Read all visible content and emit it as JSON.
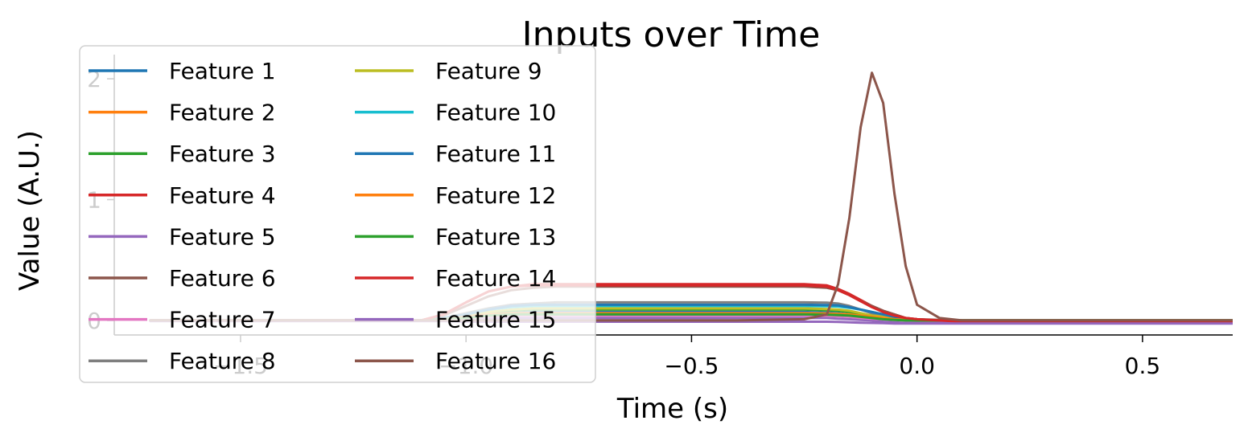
{
  "chart_data": {
    "type": "line",
    "title": "Inputs over Time",
    "xlabel": "Time (s)",
    "ylabel": "Value (A.U.)",
    "xlim": [
      -1.78,
      0.7
    ],
    "ylim": [
      -0.12,
      2.2
    ],
    "xticks": [
      -1.5,
      -1.0,
      -0.5,
      0.0,
      0.5
    ],
    "xtick_labels": [
      "−1.5",
      "−1.0",
      "−0.5",
      "0.0",
      "0.5"
    ],
    "yticks": [
      0,
      1,
      2
    ],
    "ytick_labels": [
      "0",
      "1",
      "2"
    ],
    "legend_position": "upper-left",
    "legend_columns": 2,
    "grid": false,
    "x": [
      -1.7,
      -1.6,
      -1.5,
      -1.4,
      -1.3,
      -1.2,
      -1.1,
      -1.05,
      -1.0,
      -0.95,
      -0.9,
      -0.85,
      -0.8,
      -0.6,
      -0.4,
      -0.25,
      -0.2,
      -0.175,
      -0.15,
      -0.125,
      -0.1,
      -0.075,
      -0.05,
      -0.025,
      0.0,
      0.05,
      0.1,
      0.2,
      0.4,
      0.6,
      0.7
    ],
    "series": [
      {
        "name": "Feature 1",
        "color": "#1f77b4",
        "values": [
          0,
          0,
          0,
          0,
          0,
          0,
          0,
          0.01,
          0.03,
          0.05,
          0.06,
          0.07,
          0.07,
          0.07,
          0.07,
          0.07,
          0.065,
          0.06,
          0.05,
          0.04,
          0.03,
          0.02,
          0.015,
          0.01,
          0.005,
          0,
          0,
          0,
          0,
          0,
          0
        ]
      },
      {
        "name": "Feature 2",
        "color": "#ff7f0e",
        "values": [
          0,
          0,
          0,
          0,
          0,
          0,
          0,
          0.01,
          0.02,
          0.04,
          0.05,
          0.05,
          0.05,
          0.05,
          0.05,
          0.05,
          0.048,
          0.045,
          0.04,
          0.03,
          0.02,
          0.015,
          0.01,
          0.005,
          0,
          0,
          0,
          0,
          0,
          0,
          0
        ]
      },
      {
        "name": "Feature 3",
        "color": "#2ca02c",
        "values": [
          0,
          0,
          0,
          0,
          0,
          0,
          0,
          0.01,
          0.03,
          0.06,
          0.08,
          0.09,
          0.09,
          0.09,
          0.09,
          0.09,
          0.085,
          0.08,
          0.07,
          0.055,
          0.04,
          0.03,
          0.02,
          0.01,
          0.005,
          0,
          0,
          0,
          0,
          0,
          0
        ]
      },
      {
        "name": "Feature 4",
        "color": "#d62728",
        "values": [
          0,
          0,
          0,
          0,
          0,
          0,
          0,
          0.05,
          0.15,
          0.24,
          0.28,
          0.3,
          0.3,
          0.3,
          0.3,
          0.3,
          0.29,
          0.26,
          0.22,
          0.17,
          0.12,
          0.08,
          0.05,
          0.02,
          0.01,
          0,
          -0.01,
          -0.01,
          -0.01,
          -0.01,
          -0.01
        ]
      },
      {
        "name": "Feature 5",
        "color": "#9467bd",
        "values": [
          0,
          0,
          0,
          0,
          0,
          0,
          0,
          0,
          0.01,
          0.02,
          0.02,
          0.02,
          0.02,
          0.02,
          0.02,
          0.02,
          0.02,
          0.015,
          0.01,
          0.005,
          0,
          -0.01,
          -0.015,
          -0.02,
          -0.02,
          -0.02,
          -0.02,
          -0.02,
          -0.02,
          -0.02,
          -0.02
        ]
      },
      {
        "name": "Feature 6",
        "color": "#8c564b",
        "values": [
          0,
          0,
          0,
          0,
          0,
          0,
          0,
          0.04,
          0.12,
          0.2,
          0.25,
          0.27,
          0.28,
          0.28,
          0.28,
          0.28,
          0.27,
          0.25,
          0.21,
          0.16,
          0.12,
          0.08,
          0.05,
          0.02,
          0.01,
          0.005,
          0,
          0,
          0,
          0,
          0
        ]
      },
      {
        "name": "Feature 7",
        "color": "#e377c2",
        "values": [
          0,
          0,
          0,
          0,
          0,
          0,
          0,
          0.01,
          0.02,
          0.03,
          0.04,
          0.04,
          0.04,
          0.04,
          0.04,
          0.04,
          0.038,
          0.035,
          0.03,
          0.02,
          0.015,
          0.01,
          0.005,
          0,
          0,
          0,
          0,
          0,
          0,
          0,
          0
        ]
      },
      {
        "name": "Feature 8",
        "color": "#7f7f7f",
        "values": [
          0,
          0,
          0,
          0,
          0,
          0,
          0,
          0.02,
          0.06,
          0.1,
          0.13,
          0.14,
          0.15,
          0.15,
          0.15,
          0.15,
          0.148,
          0.14,
          0.12,
          0.09,
          0.06,
          0.04,
          0.02,
          0.01,
          0,
          0,
          0,
          0,
          0,
          0,
          0
        ]
      },
      {
        "name": "Feature 9",
        "color": "#bcbd22",
        "values": [
          0,
          0,
          0,
          0,
          0,
          0,
          0,
          0.01,
          0.04,
          0.07,
          0.09,
          0.1,
          0.1,
          0.1,
          0.1,
          0.1,
          0.095,
          0.09,
          0.08,
          0.06,
          0.04,
          0.03,
          0.02,
          0.01,
          0.005,
          0,
          0,
          0,
          0,
          0,
          0
        ]
      },
      {
        "name": "Feature 10",
        "color": "#17becf",
        "values": [
          0,
          0,
          0,
          0,
          0,
          0,
          0,
          0.02,
          0.05,
          0.09,
          0.11,
          0.12,
          0.12,
          0.12,
          0.12,
          0.12,
          0.118,
          0.115,
          0.105,
          0.09,
          0.07,
          0.05,
          0.03,
          0.015,
          0.005,
          0,
          0,
          0,
          0,
          0,
          0
        ]
      },
      {
        "name": "Feature 11",
        "color": "#1f77b4",
        "values": [
          0,
          0,
          0,
          0,
          0,
          0,
          0,
          0.02,
          0.05,
          0.09,
          0.12,
          0.13,
          0.13,
          0.13,
          0.13,
          0.13,
          0.128,
          0.125,
          0.11,
          0.09,
          0.07,
          0.05,
          0.03,
          0.015,
          0.005,
          0,
          0,
          0,
          0,
          0,
          0
        ]
      },
      {
        "name": "Feature 12",
        "color": "#ff7f0e",
        "values": [
          0,
          0,
          0,
          0,
          0,
          0,
          0,
          0.01,
          0.03,
          0.05,
          0.06,
          0.06,
          0.06,
          0.06,
          0.06,
          0.06,
          0.058,
          0.055,
          0.05,
          0.04,
          0.03,
          0.02,
          0.01,
          0.005,
          0,
          0,
          0,
          0,
          0,
          0,
          0
        ]
      },
      {
        "name": "Feature 13",
        "color": "#2ca02c",
        "values": [
          0,
          0,
          0,
          0,
          0,
          0,
          0,
          0.01,
          0.02,
          0.04,
          0.05,
          0.05,
          0.05,
          0.05,
          0.05,
          0.05,
          0.048,
          0.045,
          0.04,
          0.03,
          0.02,
          0.01,
          0.005,
          0,
          0,
          0,
          0,
          0,
          0,
          0,
          0
        ]
      },
      {
        "name": "Feature 14",
        "color": "#d62728",
        "values": [
          0,
          0,
          0,
          0,
          0,
          0,
          0,
          0.05,
          0.15,
          0.24,
          0.28,
          0.29,
          0.29,
          0.29,
          0.29,
          0.29,
          0.28,
          0.25,
          0.21,
          0.16,
          0.11,
          0.07,
          0.04,
          0.02,
          0.01,
          0,
          -0.01,
          -0.01,
          -0.01,
          -0.01,
          -0.01
        ]
      },
      {
        "name": "Feature 15",
        "color": "#9467bd",
        "values": [
          -0.005,
          -0.005,
          -0.005,
          -0.005,
          -0.005,
          -0.005,
          -0.005,
          -0.005,
          -0.01,
          -0.01,
          -0.01,
          -0.01,
          -0.01,
          -0.01,
          -0.01,
          -0.01,
          -0.01,
          -0.012,
          -0.015,
          -0.018,
          -0.02,
          -0.022,
          -0.025,
          -0.025,
          -0.025,
          -0.025,
          -0.025,
          -0.025,
          -0.025,
          -0.025,
          -0.025
        ]
      },
      {
        "name": "Feature 16",
        "color": "#8c564b",
        "values": [
          0,
          0,
          0,
          0,
          0,
          0,
          0,
          0,
          0,
          0,
          0,
          0,
          0,
          0,
          0,
          0.01,
          0.05,
          0.3,
          0.85,
          1.6,
          2.05,
          1.8,
          1.05,
          0.45,
          0.13,
          0.02,
          0,
          0,
          0,
          0,
          0
        ]
      }
    ]
  }
}
